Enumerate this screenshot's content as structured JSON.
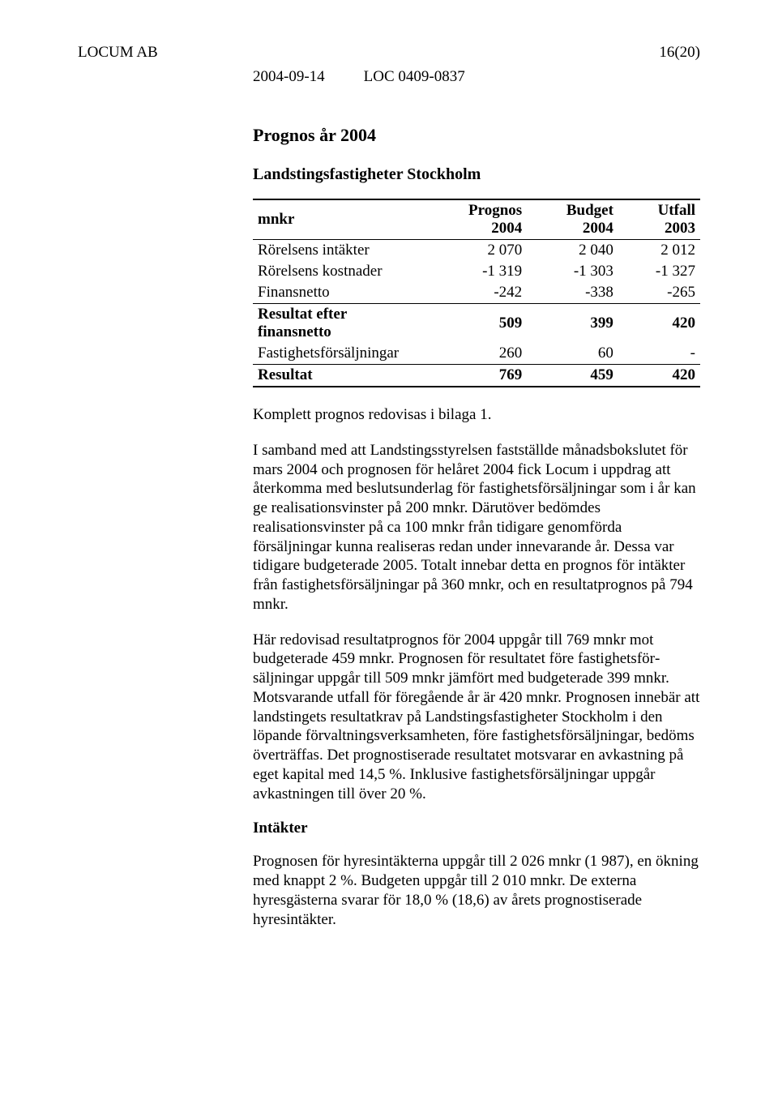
{
  "header": {
    "company": "LOCUM AB",
    "page_number": "16(20)",
    "date": "2004-09-14",
    "doc_id": "LOC 0409-0837"
  },
  "title_main": "Prognos år 2004",
  "title_sub": "Landstingsfastigheter Stockholm",
  "table": {
    "col_label": "mnkr",
    "columns": [
      "Prognos 2004",
      "Budget 2004",
      "Utfall 2003"
    ],
    "rows": [
      {
        "label": "Rörelsens intäkter",
        "vals": [
          "2 070",
          "2 040",
          "2 012"
        ]
      },
      {
        "label": "Rörelsens kostnader",
        "vals": [
          "-1 319",
          "-1 303",
          "-1 327"
        ]
      },
      {
        "label": "Finansnetto",
        "vals": [
          "-242",
          "-338",
          "-265"
        ]
      },
      {
        "label": "Resultat efter finansnetto",
        "vals": [
          "509",
          "399",
          "420"
        ],
        "bold": true,
        "tbord": true
      },
      {
        "label": "Fastighetsförsäljningar",
        "vals": [
          "260",
          "60",
          "-"
        ]
      },
      {
        "label": "Resultat",
        "vals": [
          "769",
          "459",
          "420"
        ],
        "bold": true,
        "tbord": true,
        "bbord": true
      }
    ]
  },
  "paragraphs": {
    "p1": "Komplett prognos redovisas i bilaga 1.",
    "p2": "I samband med att Landstingsstyrelsen fastställde månadsbokslutet för mars 2004 och prognosen för helåret 2004 fick Locum i uppdrag att återkomma med beslutsunderlag för fastighetsförsäljningar som i år kan ge realisationsvinster på 200 mnkr. Därutöver bedömdes realisationsvinster på ca 100 mnkr från tidigare genomförda försäljningar kunna realiseras redan under innevarande år. Dessa var tidigare budgeterade 2005. Totalt innebar detta en prognos för intäkter från fastighetsförsäljningar på 360 mnkr, och en resultatprognos på 794 mnkr.",
    "p3": "Här redovisad resultatprognos för 2004 uppgår till 769 mnkr mot budgeterade 459 mnkr. Prognosen för resultatet före fastighetsför­säljningar uppgår till 509 mnkr jämfört med budgeterade 399 mnkr. Motsvarande utfall för föregående år är 420 mnkr. Prognosen innebär att landstingets resultatkrav på Landstingsfastigheter Stockholm i den löpande förvaltningsverksamheten, före fastighetsförsäljningar, bedöms överträffas. Det prognostiserade resultatet motsvarar en avkastning på eget kapital med 14,5 %. Inklusive fastighetsförsäljningar uppgår avkastningen till över 20 %.",
    "intakter_heading": "Intäkter",
    "p4": "Prognosen för hyresintäkterna uppgår till 2 026 mnkr (1 987), en ökning med knappt 2 %. Budgeten uppgår till 2 010 mnkr. De externa hyresgästerna svarar för 18,0 % (18,6) av årets prognostiserade hyresintäkter."
  }
}
